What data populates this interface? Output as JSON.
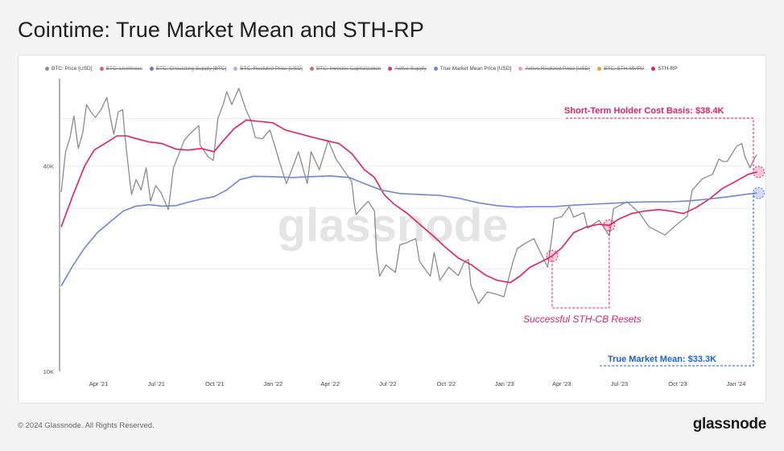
{
  "title": "Cointime: True Market Mean and STH-RP",
  "footer": {
    "copyright": "© 2024 Glassnode. All Rights Reserved.",
    "logo": "glassnode"
  },
  "watermark": "glassnode",
  "legend": [
    {
      "label": "BTC: Price [USD]",
      "color": "#8c8c8c",
      "active": true
    },
    {
      "label": "BTC: Liveliness",
      "color": "#e0577f",
      "active": false
    },
    {
      "label": "BTC: Circulating Supply [BTC]",
      "color": "#6b6fd0",
      "active": false
    },
    {
      "label": "BTC: Realized Price [USD]",
      "color": "#a6b4e8",
      "active": false
    },
    {
      "label": "BTC: Investor Capitalization",
      "color": "#e46a6a",
      "active": false
    },
    {
      "label": "Active Supply",
      "color": "#e0336e",
      "active": false
    },
    {
      "label": "True Market Mean Price [USD]",
      "color": "#6f86d6",
      "active": true
    },
    {
      "label": "Active Realized Price [USD]",
      "color": "#f2a0c0",
      "active": false
    },
    {
      "label": "BTC: STH-MVRV",
      "color": "#f0a030",
      "active": false
    },
    {
      "label": "STH-RP",
      "color": "#e51e62",
      "active": true
    }
  ],
  "annotations": {
    "sth": {
      "text": "Short-Term Holder Cost Basis: $38.4K",
      "color": "#e51e62"
    },
    "tmm": {
      "text": "True Market Mean: $33.3K",
      "color": "#1f5fd6"
    },
    "resets": {
      "text": "Successful STH-CB Resets",
      "color": "#e51e62"
    }
  },
  "chart_data": {
    "type": "line",
    "y_scale": "log",
    "ylim": [
      10000,
      72000
    ],
    "y_ticks": [
      {
        "value": 10000,
        "label": "10K"
      },
      {
        "value": 40000,
        "label": "40K"
      }
    ],
    "x_range": [
      "2021-02-01",
      "2024-02-10"
    ],
    "x_ticks": [
      {
        "date": "2021-04-01",
        "label": "Apr '21"
      },
      {
        "date": "2021-07-01",
        "label": "Jul '21"
      },
      {
        "date": "2021-10-01",
        "label": "Oct '21"
      },
      {
        "date": "2022-01-01",
        "label": "Jan '22"
      },
      {
        "date": "2022-04-01",
        "label": "Apr '22"
      },
      {
        "date": "2022-07-01",
        "label": "Jul '22"
      },
      {
        "date": "2022-10-01",
        "label": "Oct '22"
      },
      {
        "date": "2023-01-01",
        "label": "Jan '23"
      },
      {
        "date": "2023-04-01",
        "label": "Apr '23"
      },
      {
        "date": "2023-07-01",
        "label": "Jul '23"
      },
      {
        "date": "2023-10-01",
        "label": "Oct '23"
      },
      {
        "date": "2024-01-01",
        "label": "Jan '24"
      }
    ],
    "series": [
      {
        "name": "BTC: Price [USD]",
        "color": "#8c8c8c",
        "points": [
          [
            "2021-02-01",
            33500
          ],
          [
            "2021-02-08",
            44000
          ],
          [
            "2021-02-15",
            48500
          ],
          [
            "2021-02-21",
            56000
          ],
          [
            "2021-02-28",
            45000
          ],
          [
            "2021-03-07",
            50000
          ],
          [
            "2021-03-13",
            60500
          ],
          [
            "2021-03-20",
            57500
          ],
          [
            "2021-03-27",
            55500
          ],
          [
            "2021-04-05",
            58500
          ],
          [
            "2021-04-14",
            63500
          ],
          [
            "2021-04-20",
            55000
          ],
          [
            "2021-04-25",
            49500
          ],
          [
            "2021-05-02",
            57500
          ],
          [
            "2021-05-09",
            58500
          ],
          [
            "2021-05-12",
            50000
          ],
          [
            "2021-05-19",
            38000
          ],
          [
            "2021-05-23",
            33000
          ],
          [
            "2021-05-30",
            36500
          ],
          [
            "2021-06-07",
            34000
          ],
          [
            "2021-06-15",
            39500
          ],
          [
            "2021-06-22",
            31500
          ],
          [
            "2021-06-30",
            35000
          ],
          [
            "2021-07-08",
            33500
          ],
          [
            "2021-07-20",
            29800
          ],
          [
            "2021-07-28",
            39500
          ],
          [
            "2021-08-07",
            44000
          ],
          [
            "2021-08-14",
            47500
          ],
          [
            "2021-08-22",
            49500
          ],
          [
            "2021-09-06",
            52500
          ],
          [
            "2021-09-08",
            46000
          ],
          [
            "2021-09-21",
            42500
          ],
          [
            "2021-09-29",
            41500
          ],
          [
            "2021-10-06",
            55000
          ],
          [
            "2021-10-15",
            61000
          ],
          [
            "2021-10-20",
            66000
          ],
          [
            "2021-10-28",
            60500
          ],
          [
            "2021-11-08",
            67500
          ],
          [
            "2021-11-20",
            58000
          ],
          [
            "2021-11-27",
            54500
          ],
          [
            "2021-12-04",
            48500
          ],
          [
            "2021-12-15",
            48000
          ],
          [
            "2021-12-27",
            51000
          ],
          [
            "2022-01-05",
            45000
          ],
          [
            "2022-01-10",
            41800
          ],
          [
            "2022-01-22",
            35500
          ],
          [
            "2022-02-05",
            41500
          ],
          [
            "2022-02-10",
            44000
          ],
          [
            "2022-02-24",
            35500
          ],
          [
            "2022-03-02",
            44000
          ],
          [
            "2022-03-15",
            39000
          ],
          [
            "2022-03-29",
            47500
          ],
          [
            "2022-04-10",
            42000
          ],
          [
            "2022-04-26",
            38000
          ],
          [
            "2022-05-05",
            36000
          ],
          [
            "2022-05-09",
            31000
          ],
          [
            "2022-05-12",
            28800
          ],
          [
            "2022-05-20",
            30000
          ],
          [
            "2022-05-31",
            31500
          ],
          [
            "2022-06-10",
            29500
          ],
          [
            "2022-06-13",
            22500
          ],
          [
            "2022-06-18",
            19000
          ],
          [
            "2022-06-28",
            20500
          ],
          [
            "2022-07-13",
            19500
          ],
          [
            "2022-07-20",
            23500
          ],
          [
            "2022-07-30",
            23800
          ],
          [
            "2022-08-14",
            24500
          ],
          [
            "2022-08-20",
            21000
          ],
          [
            "2022-09-06",
            19000
          ],
          [
            "2022-09-12",
            22300
          ],
          [
            "2022-09-21",
            18500
          ],
          [
            "2022-10-05",
            20200
          ],
          [
            "2022-10-20",
            19100
          ],
          [
            "2022-10-29",
            20800
          ],
          [
            "2022-11-05",
            21300
          ],
          [
            "2022-11-09",
            17800
          ],
          [
            "2022-11-21",
            15800
          ],
          [
            "2022-12-05",
            17100
          ],
          [
            "2022-12-20",
            16800
          ],
          [
            "2022-12-31",
            16550
          ],
          [
            "2023-01-14",
            20900
          ],
          [
            "2023-01-21",
            22900
          ],
          [
            "2023-02-02",
            23700
          ],
          [
            "2023-02-16",
            24500
          ],
          [
            "2023-03-10",
            20200
          ],
          [
            "2023-03-17",
            25000
          ],
          [
            "2023-03-20",
            28000
          ],
          [
            "2023-04-01",
            28400
          ],
          [
            "2023-04-13",
            30400
          ],
          [
            "2023-04-20",
            28300
          ],
          [
            "2023-05-06",
            29200
          ],
          [
            "2023-05-12",
            26300
          ],
          [
            "2023-05-30",
            27700
          ],
          [
            "2023-06-15",
            25000
          ],
          [
            "2023-06-22",
            30000
          ],
          [
            "2023-07-13",
            31400
          ],
          [
            "2023-08-01",
            29200
          ],
          [
            "2023-08-17",
            26500
          ],
          [
            "2023-09-11",
            25100
          ],
          [
            "2023-09-30",
            27000
          ],
          [
            "2023-10-16",
            28500
          ],
          [
            "2023-10-24",
            34000
          ],
          [
            "2023-11-09",
            36700
          ],
          [
            "2023-11-25",
            37800
          ],
          [
            "2023-12-05",
            41900
          ],
          [
            "2023-12-11",
            41200
          ],
          [
            "2023-12-18",
            41200
          ],
          [
            "2024-01-02",
            45700
          ],
          [
            "2024-01-10",
            46500
          ],
          [
            "2024-01-15",
            42600
          ],
          [
            "2024-01-23",
            39500
          ],
          [
            "2024-01-31",
            42500
          ],
          [
            "2024-02-03",
            43100
          ]
        ]
      },
      {
        "name": "STH-RP",
        "color": "#e51e62",
        "points": [
          [
            "2021-02-01",
            26500
          ],
          [
            "2021-02-20",
            33000
          ],
          [
            "2021-03-10",
            40000
          ],
          [
            "2021-03-25",
            44500
          ],
          [
            "2021-04-15",
            47000
          ],
          [
            "2021-04-30",
            49000
          ],
          [
            "2021-05-15",
            49000
          ],
          [
            "2021-06-01",
            48000
          ],
          [
            "2021-06-20",
            47000
          ],
          [
            "2021-07-10",
            46500
          ],
          [
            "2021-08-01",
            44800
          ],
          [
            "2021-08-20",
            44500
          ],
          [
            "2021-09-10",
            45000
          ],
          [
            "2021-09-30",
            44000
          ],
          [
            "2021-10-15",
            47500
          ],
          [
            "2021-11-01",
            51500
          ],
          [
            "2021-11-20",
            54500
          ],
          [
            "2021-12-10",
            54000
          ],
          [
            "2022-01-01",
            53500
          ],
          [
            "2022-01-20",
            51000
          ],
          [
            "2022-02-10",
            49800
          ],
          [
            "2022-03-05",
            48500
          ],
          [
            "2022-03-25",
            47500
          ],
          [
            "2022-04-15",
            46500
          ],
          [
            "2022-05-05",
            43500
          ],
          [
            "2022-05-25",
            39000
          ],
          [
            "2022-06-10",
            37000
          ],
          [
            "2022-06-25",
            33000
          ],
          [
            "2022-07-10",
            31000
          ],
          [
            "2022-08-01",
            29000
          ],
          [
            "2022-08-20",
            27000
          ],
          [
            "2022-09-10",
            25000
          ],
          [
            "2022-10-01",
            23000
          ],
          [
            "2022-10-20",
            21500
          ],
          [
            "2022-11-10",
            20500
          ],
          [
            "2022-12-01",
            19200
          ],
          [
            "2022-12-20",
            18500
          ],
          [
            "2023-01-10",
            18200
          ],
          [
            "2023-01-25",
            19000
          ],
          [
            "2023-02-10",
            20200
          ],
          [
            "2023-03-01",
            21000
          ],
          [
            "2023-03-17",
            21800
          ],
          [
            "2023-04-01",
            23000
          ],
          [
            "2023-04-20",
            25500
          ],
          [
            "2023-05-10",
            26500
          ],
          [
            "2023-05-30",
            27000
          ],
          [
            "2023-06-15",
            26800
          ],
          [
            "2023-07-01",
            28000
          ],
          [
            "2023-07-20",
            29000
          ],
          [
            "2023-08-10",
            29500
          ],
          [
            "2023-09-01",
            29800
          ],
          [
            "2023-09-20",
            29500
          ],
          [
            "2023-10-10",
            29000
          ],
          [
            "2023-10-30",
            30200
          ],
          [
            "2023-11-20",
            32000
          ],
          [
            "2023-12-10",
            34300
          ],
          [
            "2023-12-31",
            36000
          ],
          [
            "2024-01-20",
            37800
          ],
          [
            "2024-02-03",
            38400
          ]
        ]
      },
      {
        "name": "True Market Mean Price [USD]",
        "color": "#6f86d6",
        "points": [
          [
            "2021-02-01",
            17800
          ],
          [
            "2021-02-20",
            20500
          ],
          [
            "2021-03-10",
            23000
          ],
          [
            "2021-03-30",
            25500
          ],
          [
            "2021-04-20",
            27500
          ],
          [
            "2021-05-10",
            29500
          ],
          [
            "2021-05-30",
            30500
          ],
          [
            "2021-06-20",
            30800
          ],
          [
            "2021-07-10",
            30500
          ],
          [
            "2021-08-01",
            30600
          ],
          [
            "2021-08-20",
            31300
          ],
          [
            "2021-09-10",
            32000
          ],
          [
            "2021-09-30",
            32500
          ],
          [
            "2021-10-20",
            34000
          ],
          [
            "2021-11-10",
            36500
          ],
          [
            "2021-12-01",
            37300
          ],
          [
            "2021-12-31",
            37200
          ],
          [
            "2022-02-01",
            37000
          ],
          [
            "2022-03-01",
            37200
          ],
          [
            "2022-04-01",
            37400
          ],
          [
            "2022-05-01",
            37000
          ],
          [
            "2022-05-25",
            35500
          ],
          [
            "2022-06-20",
            34000
          ],
          [
            "2022-07-20",
            33200
          ],
          [
            "2022-08-20",
            33000
          ],
          [
            "2022-09-20",
            32800
          ],
          [
            "2022-10-20",
            32200
          ],
          [
            "2022-11-20",
            31200
          ],
          [
            "2022-12-20",
            30600
          ],
          [
            "2023-01-20",
            30300
          ],
          [
            "2023-02-20",
            30400
          ],
          [
            "2023-03-20",
            30400
          ],
          [
            "2023-04-20",
            30700
          ],
          [
            "2023-05-20",
            30900
          ],
          [
            "2023-06-20",
            31100
          ],
          [
            "2023-07-20",
            31300
          ],
          [
            "2023-08-20",
            31400
          ],
          [
            "2023-09-20",
            31400
          ],
          [
            "2023-10-20",
            31600
          ],
          [
            "2023-11-20",
            32000
          ],
          [
            "2023-12-20",
            32500
          ],
          [
            "2024-01-20",
            33100
          ],
          [
            "2024-02-03",
            33300
          ]
        ]
      }
    ]
  }
}
